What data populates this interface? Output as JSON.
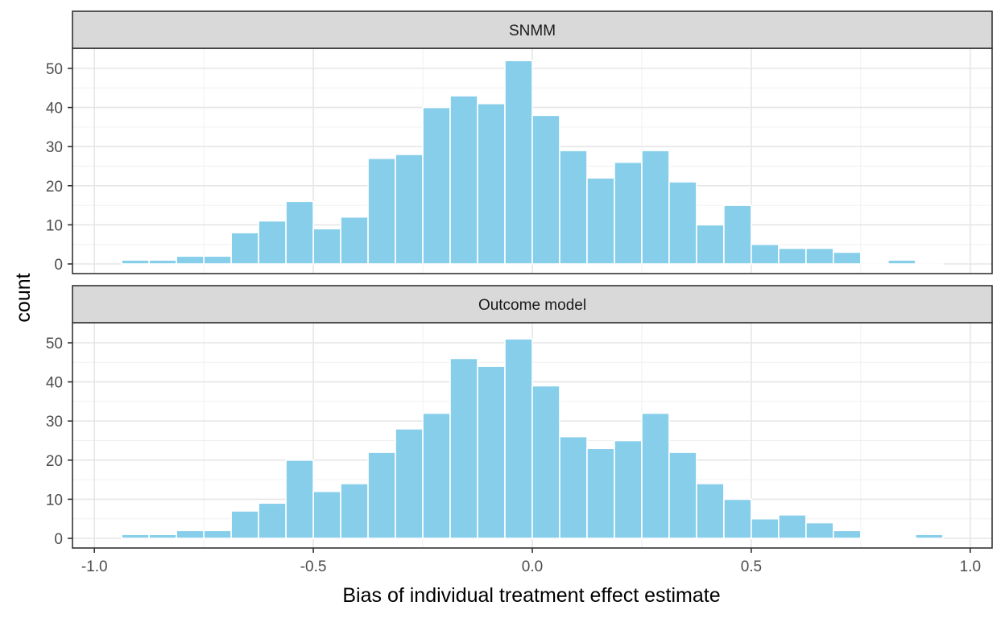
{
  "chart_data": {
    "type": "bar",
    "subtype": "faceted histogram",
    "xlabel": "Bias of individual treatment effect estimate",
    "ylabel": "count",
    "xlim": [
      -1.0,
      1.05
    ],
    "ylim": [
      0,
      55
    ],
    "x_ticks": [
      -1.0,
      -0.5,
      0.0,
      0.5,
      1.0
    ],
    "x_tick_labels": [
      "-1.0",
      "-0.5",
      "0.0",
      "0.5",
      "1.0"
    ],
    "y_ticks": [
      0,
      10,
      20,
      30,
      40,
      50
    ],
    "y_tick_labels": [
      "0",
      "10",
      "20",
      "30",
      "40",
      "50"
    ],
    "bin_width": 0.0625,
    "bin_start": -0.9375,
    "grid": true,
    "bar_color": "#87CEEB",
    "bar_outline": "#ffffff",
    "strip_fill": "#d9d9d9",
    "panels": [
      {
        "name": "SNMM",
        "values": [
          1,
          1,
          2,
          2,
          8,
          11,
          16,
          9,
          12,
          27,
          28,
          40,
          43,
          41,
          52,
          38,
          29,
          22,
          26,
          29,
          21,
          10,
          15,
          5,
          4,
          4,
          3,
          0,
          1,
          0
        ]
      },
      {
        "name": "Outcome model",
        "values": [
          1,
          1,
          2,
          2,
          7,
          9,
          20,
          12,
          14,
          22,
          28,
          32,
          46,
          44,
          51,
          39,
          26,
          23,
          25,
          32,
          22,
          14,
          10,
          5,
          6,
          4,
          2,
          0,
          0,
          1
        ]
      }
    ]
  }
}
